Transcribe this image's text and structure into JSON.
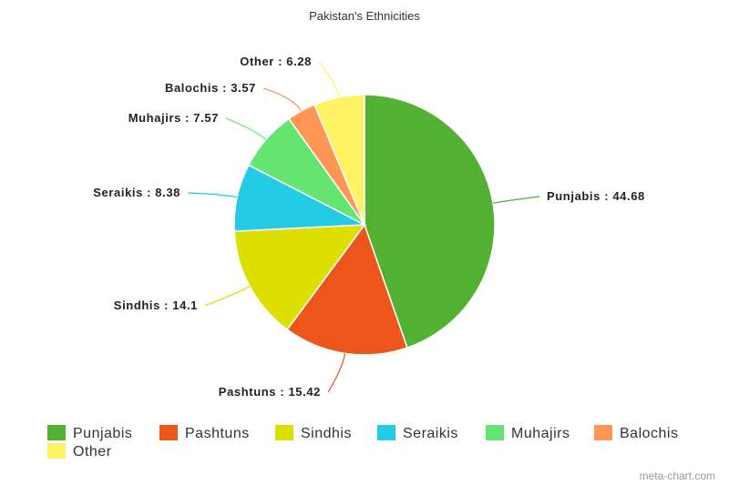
{
  "chart_data": {
    "type": "pie",
    "title": "Pakistan's Ethnicities",
    "categories": [
      "Punjabis",
      "Pashtuns",
      "Sindhis",
      "Seraikis",
      "Muhajirs",
      "Balochis",
      "Other"
    ],
    "values": [
      44.68,
      15.42,
      14.1,
      8.38,
      7.57,
      3.57,
      6.28
    ],
    "colors": [
      "#52b033",
      "#ec561b",
      "#dddf00",
      "#24cbe5",
      "#64e572",
      "#ff9655",
      "#fff263"
    ],
    "labels": [
      "Punjabis : 44.68",
      "Pashtuns : 15.42",
      "Sindhis : 14.1",
      "Seraikis : 8.38",
      "Muhajirs : 7.57",
      "Balochis : 3.57",
      "Other : 6.28"
    ],
    "legend_position": "bottom-left",
    "start_angle": "top (12 o'clock)",
    "direction": "clockwise"
  },
  "credit": "meta-chart.com"
}
